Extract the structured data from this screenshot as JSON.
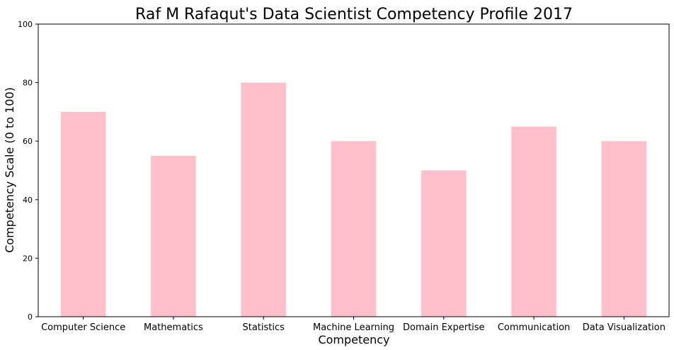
{
  "chart_data": {
    "type": "bar",
    "title": "Raf M Rafaqut's Data Scientist Competency Profile 2017",
    "xlabel": "Competency",
    "ylabel": "Competency Scale (0 to 100)",
    "categories": [
      "Computer Science",
      "Mathematics",
      "Statistics",
      "Machine Learning",
      "Domain Expertise",
      "Communication",
      "Data Visualization"
    ],
    "values": [
      70,
      55,
      80,
      60,
      50,
      65,
      60
    ],
    "ylim": [
      0,
      100
    ],
    "yticks": [
      "0",
      "20",
      "40",
      "60",
      "80",
      "100"
    ],
    "bar_color": "#ffc0cb",
    "grid": false,
    "legend": false
  }
}
